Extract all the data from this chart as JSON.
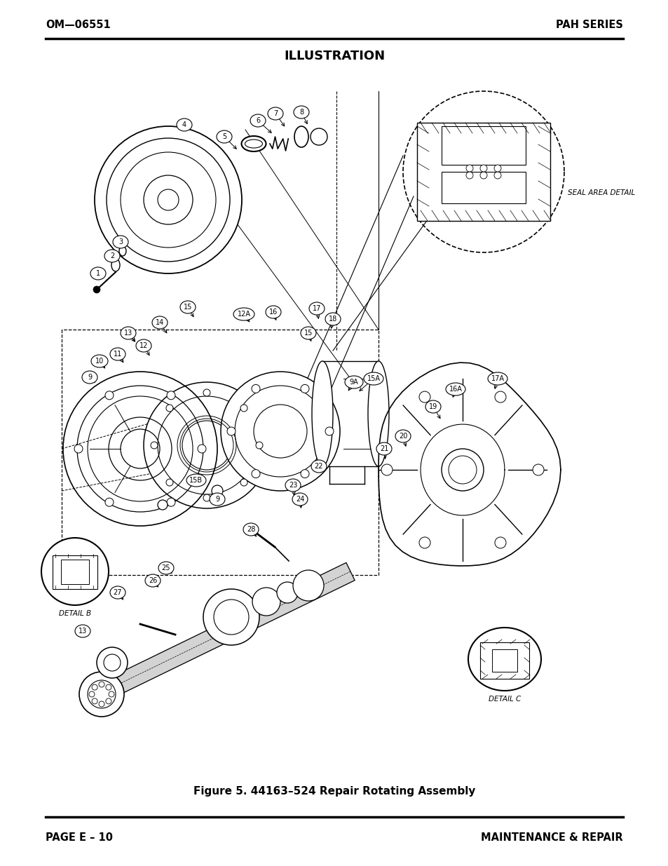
{
  "top_left_text": "OM—06551",
  "top_right_text": "PAH SERIES",
  "title": "ILLUSTRATION",
  "caption": "Figure 5. 44163–524 Repair Rotating Assembly",
  "bottom_left_text": "PAGE E – 10",
  "bottom_right_text": "MAINTENANCE & REPAIR",
  "bg_color": "#ffffff",
  "line_color": "#000000",
  "text_color": "#000000"
}
